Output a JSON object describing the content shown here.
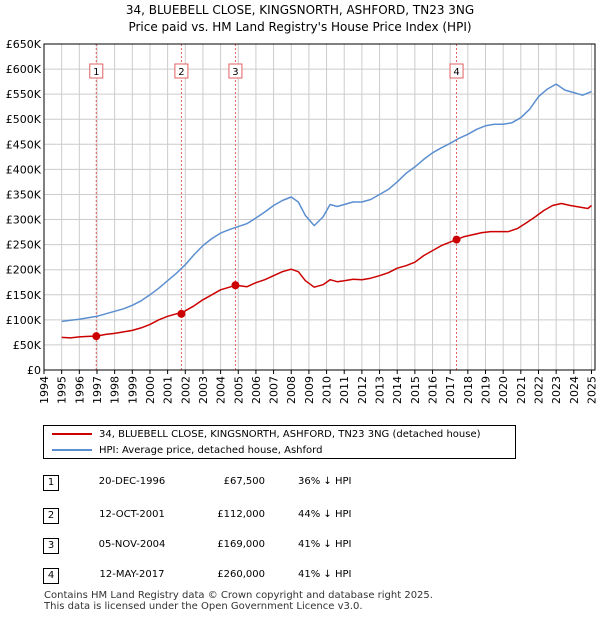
{
  "title_line1": "34, BLUEBELL CLOSE, KINGSNORTH, ASHFORD, TN23 3NG",
  "title_line2": "Price paid vs. HM Land Registry's House Price Index (HPI)",
  "legend": {
    "property_label": "34, BLUEBELL CLOSE, KINGSNORTH, ASHFORD, TN23 3NG (detached house)",
    "hpi_label": "HPI: Average price, detached house, Ashford"
  },
  "transactions": [
    {
      "num": "1",
      "date": "20-DEC-1996",
      "price": "£67,500",
      "hpi": "36% ↓ HPI"
    },
    {
      "num": "2",
      "date": "12-OCT-2001",
      "price": "£112,000",
      "hpi": "44% ↓ HPI"
    },
    {
      "num": "3",
      "date": "05-NOV-2004",
      "price": "£169,000",
      "hpi": "41% ↓ HPI"
    },
    {
      "num": "4",
      "date": "12-MAY-2017",
      "price": "£260,000",
      "hpi": "41% ↓ HPI"
    }
  ],
  "footer": {
    "line1": "Contains HM Land Registry data © Crown copyright and database right 2025.",
    "line2": "This data is licensed under the Open Government Licence v3.0."
  },
  "colors": {
    "property": "#cc0000",
    "hpi": "#5b8fd0",
    "vline": "#e06060",
    "grid": "#cccccc",
    "axis": "#000000"
  },
  "chart_data": {
    "type": "line",
    "title": "34, BLUEBELL CLOSE, KINGSNORTH, ASHFORD, TN23 3NG — Price paid vs. HM Land Registry's House Price Index (HPI)",
    "xlabel": "",
    "ylabel": "",
    "xlim": [
      1994,
      2025.2
    ],
    "ylim": [
      0,
      650000
    ],
    "grid": true,
    "legend_position": "below",
    "x_ticks": [
      "1994",
      "1995",
      "1996",
      "1997",
      "1998",
      "1999",
      "2000",
      "2001",
      "2002",
      "2003",
      "2004",
      "2005",
      "2006",
      "2007",
      "2008",
      "2009",
      "2010",
      "2011",
      "2012",
      "2013",
      "2014",
      "2015",
      "2016",
      "2017",
      "2018",
      "2019",
      "2020",
      "2021",
      "2022",
      "2023",
      "2024",
      "2025"
    ],
    "y_ticks": [
      {
        "value": 0,
        "label": "£0"
      },
      {
        "value": 50000,
        "label": "£50K"
      },
      {
        "value": 100000,
        "label": "£100K"
      },
      {
        "value": 150000,
        "label": "£150K"
      },
      {
        "value": 200000,
        "label": "£200K"
      },
      {
        "value": 250000,
        "label": "£250K"
      },
      {
        "value": 300000,
        "label": "£300K"
      },
      {
        "value": 350000,
        "label": "£350K"
      },
      {
        "value": 400000,
        "label": "£400K"
      },
      {
        "value": 450000,
        "label": "£450K"
      },
      {
        "value": 500000,
        "label": "£500K"
      },
      {
        "value": 550000,
        "label": "£550K"
      },
      {
        "value": 600000,
        "label": "£600K"
      },
      {
        "value": 650000,
        "label": "£650K"
      }
    ],
    "series": [
      {
        "name": "34, BLUEBELL CLOSE, KINGSNORTH, ASHFORD, TN23 3NG (detached house)",
        "x": [
          1995.0,
          1995.5,
          1996.0,
          1996.5,
          1996.96,
          1997.5,
          1998.0,
          1998.5,
          1999.0,
          1999.5,
          2000.0,
          2000.5,
          2001.0,
          2001.5,
          2001.78,
          2002.0,
          2002.5,
          2003.0,
          2003.5,
          2004.0,
          2004.5,
          2004.84,
          2005.5,
          2006.0,
          2006.5,
          2007.0,
          2007.5,
          2008.0,
          2008.4,
          2008.8,
          2009.3,
          2009.8,
          2010.2,
          2010.6,
          2011.0,
          2011.5,
          2012.0,
          2012.5,
          2013.0,
          2013.5,
          2014.0,
          2014.5,
          2015.0,
          2015.5,
          2016.0,
          2016.5,
          2017.0,
          2017.36,
          2017.8,
          2018.3,
          2018.8,
          2019.3,
          2019.8,
          2020.3,
          2020.8,
          2021.3,
          2021.8,
          2022.3,
          2022.8,
          2023.3,
          2023.8,
          2024.3,
          2024.8,
          2025.0
        ],
        "values": [
          65000,
          64000,
          66000,
          67000,
          67500,
          71000,
          73000,
          76000,
          79000,
          84000,
          91000,
          100000,
          107000,
          112000,
          112000,
          118000,
          128000,
          140000,
          150000,
          160000,
          165000,
          169000,
          166000,
          174000,
          180000,
          188000,
          196000,
          201000,
          196000,
          178000,
          165000,
          170000,
          180000,
          176000,
          178000,
          181000,
          180000,
          183000,
          188000,
          194000,
          203000,
          208000,
          215000,
          228000,
          238000,
          248000,
          255000,
          260000,
          266000,
          270000,
          274000,
          276000,
          276000,
          276000,
          282000,
          293000,
          305000,
          318000,
          328000,
          332000,
          328000,
          325000,
          322000,
          328000
        ]
      },
      {
        "name": "HPI: Average price, detached house, Ashford",
        "x": [
          1995.0,
          1995.5,
          1996.0,
          1996.5,
          1997.0,
          1997.5,
          1998.0,
          1998.5,
          1999.0,
          1999.5,
          2000.0,
          2000.5,
          2001.0,
          2001.5,
          2002.0,
          2002.5,
          2003.0,
          2003.5,
          2004.0,
          2004.5,
          2005.0,
          2005.5,
          2006.0,
          2006.5,
          2007.0,
          2007.5,
          2008.0,
          2008.4,
          2008.8,
          2009.3,
          2009.8,
          2010.2,
          2010.6,
          2011.0,
          2011.5,
          2012.0,
          2012.5,
          2013.0,
          2013.5,
          2014.0,
          2014.5,
          2015.0,
          2015.5,
          2016.0,
          2016.5,
          2017.0,
          2017.5,
          2018.0,
          2018.5,
          2019.0,
          2019.5,
          2020.0,
          2020.5,
          2021.0,
          2021.5,
          2022.0,
          2022.5,
          2023.0,
          2023.5,
          2024.0,
          2024.5,
          2025.0
        ],
        "values": [
          97000,
          99000,
          101000,
          104000,
          107000,
          112000,
          117000,
          122000,
          129000,
          138000,
          150000,
          163000,
          178000,
          193000,
          210000,
          230000,
          248000,
          262000,
          273000,
          280000,
          286000,
          292000,
          303000,
          315000,
          328000,
          338000,
          345000,
          335000,
          308000,
          288000,
          305000,
          330000,
          326000,
          330000,
          335000,
          335000,
          340000,
          350000,
          360000,
          375000,
          392000,
          405000,
          420000,
          433000,
          443000,
          452000,
          462000,
          470000,
          480000,
          487000,
          490000,
          490000,
          493000,
          503000,
          520000,
          545000,
          560000,
          570000,
          558000,
          553000,
          548000,
          555000
        ]
      }
    ],
    "markers": [
      {
        "label": "1",
        "x": 1996.96,
        "y": 67500
      },
      {
        "label": "2",
        "x": 2001.78,
        "y": 112000
      },
      {
        "label": "3",
        "x": 2004.84,
        "y": 169000
      },
      {
        "label": "4",
        "x": 2017.36,
        "y": 260000
      }
    ]
  }
}
